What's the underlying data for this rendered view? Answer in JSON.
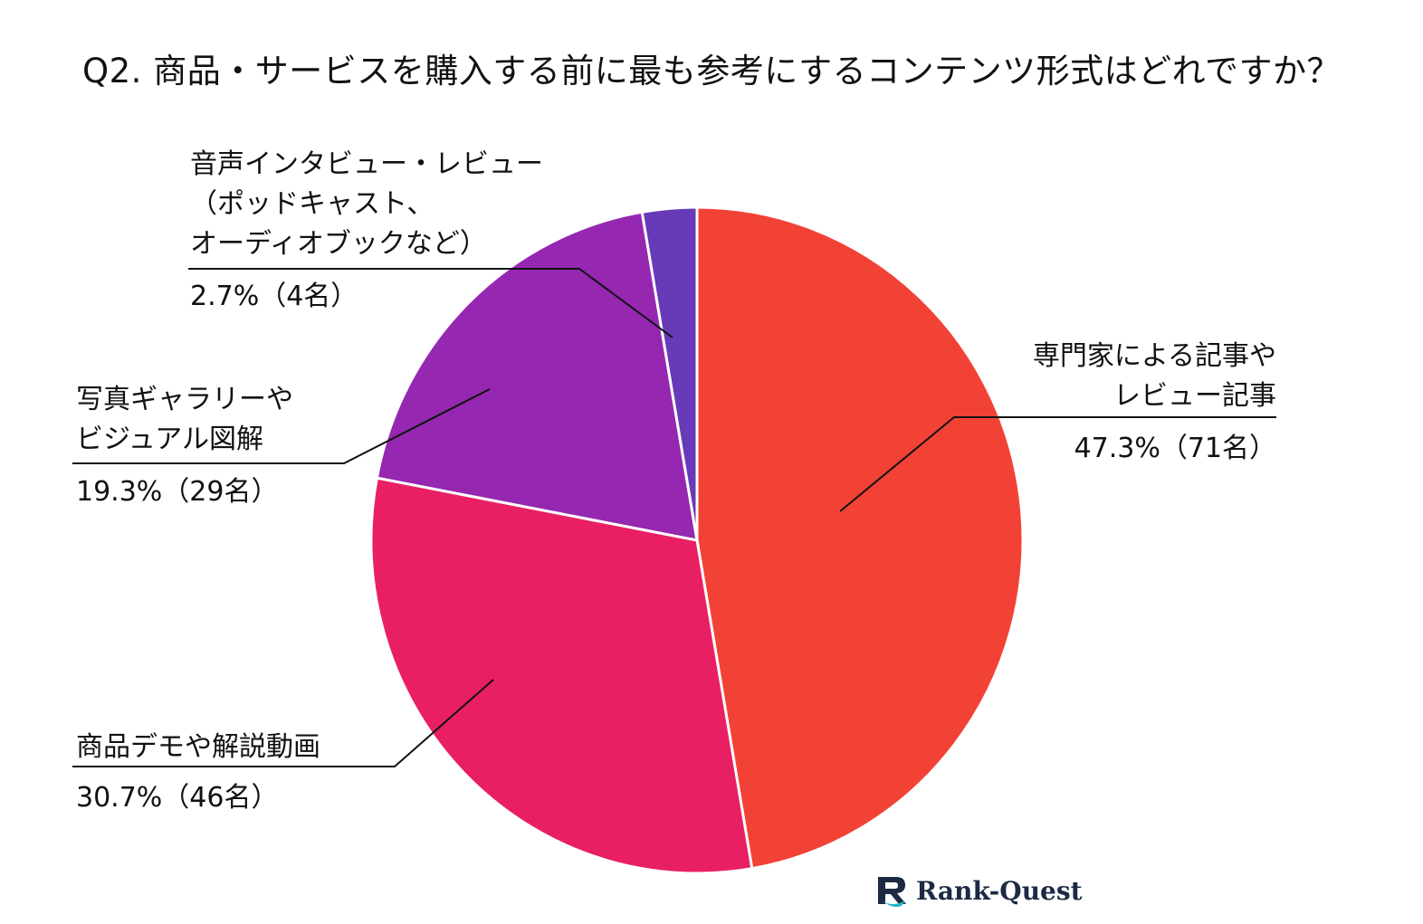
{
  "chart_data": {
    "type": "pie",
    "title": "Q2. 商品・サービスを購入する前に最も参考にするコンテンツ形式はどれですか？",
    "slices": [
      {
        "label_lines": [
          "専門家による記事や",
          "レビュー記事"
        ],
        "value_text": "47.3%（71名）",
        "value": 47.3,
        "count": 71,
        "color": "#f24236"
      },
      {
        "label_lines": [
          "商品デモや解説動画"
        ],
        "value_text": "30.7%（46名）",
        "value": 30.7,
        "count": 46,
        "color": "#e91f63"
      },
      {
        "label_lines": [
          "写真ギャラリーや",
          "ビジュアル図解"
        ],
        "value_text": "19.3%（29名）",
        "value": 19.3,
        "count": 29,
        "color": "#9527b0"
      },
      {
        "label_lines": [
          "音声インタビュー・レビュー",
          "（ポッドキャスト、",
          "オーディオブックなど）"
        ],
        "value_text": "2.7%（4名）",
        "value": 2.7,
        "count": 4,
        "color": "#673bb7"
      }
    ]
  },
  "logo": {
    "text": "Rank-Quest",
    "icon": "rank-quest-logo-icon",
    "colors": [
      "#1d2a44",
      "#2bb3c0"
    ]
  }
}
